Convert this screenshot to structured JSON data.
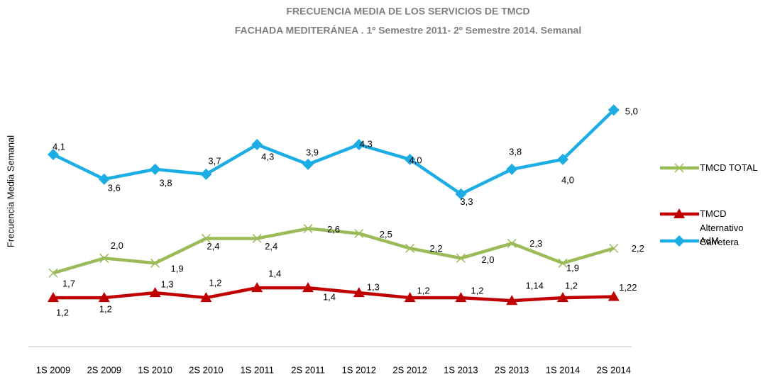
{
  "chart_data": {
    "type": "line",
    "title": "FRECUENCIA MEDIA DE LOS SERVICIOS  DE TMCD",
    "subtitle": "FACHADA MEDITERÁNEA .  1º Semestre 2011-  2º Semestre 2014. Semanal",
    "y_label": "Frecuencia Media Semanal",
    "categories": [
      "1S 2009",
      "2S 2009",
      "1S 2010",
      "2S 2010",
      "1S 2011",
      "2S 2011",
      "1S 2012",
      "2S 2012",
      "1S 2013",
      "2S 2013",
      "1S 2014",
      "2S 2014"
    ],
    "ylim": [
      0,
      5.5
    ],
    "legend": "right",
    "series": [
      {
        "name": "TMCD TOTAL",
        "color": "#9bbb59",
        "marker": "x",
        "values": [
          1.7,
          2.0,
          1.9,
          2.4,
          2.4,
          2.6,
          2.5,
          2.2,
          2.0,
          2.3,
          1.9,
          2.2
        ],
        "value_labels": [
          "1,7",
          "2,0",
          "1,9",
          "2,4",
          "2,4",
          "2,6",
          "2,5",
          "2,2",
          "2,0",
          "2,3",
          "1,9",
          "2,2"
        ]
      },
      {
        "name": "TMCD Alternativo Carretera",
        "color": "#c00000",
        "marker": "triangle",
        "values": [
          1.2,
          1.2,
          1.3,
          1.2,
          1.4,
          1.4,
          1.3,
          1.2,
          1.2,
          1.14,
          1.2,
          1.22
        ],
        "value_labels": [
          "1,2",
          "1,2",
          "1,3",
          "1,2",
          "1,4",
          "1,4",
          "1,3",
          "1,2",
          "1,2",
          "1,14",
          "1,2",
          "1,22"
        ]
      },
      {
        "name": "AdM",
        "color": "#1cade4",
        "marker": "diamond",
        "values": [
          4.1,
          3.6,
          3.8,
          3.7,
          4.3,
          3.9,
          4.3,
          4.0,
          3.3,
          3.8,
          4.0,
          5.0
        ],
        "value_labels": [
          "4,1",
          "3,6",
          "3,8",
          "3,7",
          "4,3",
          "3,9",
          "4,3",
          "4,0",
          "3,3",
          "3,8",
          "4,0",
          "5,0"
        ]
      }
    ]
  }
}
